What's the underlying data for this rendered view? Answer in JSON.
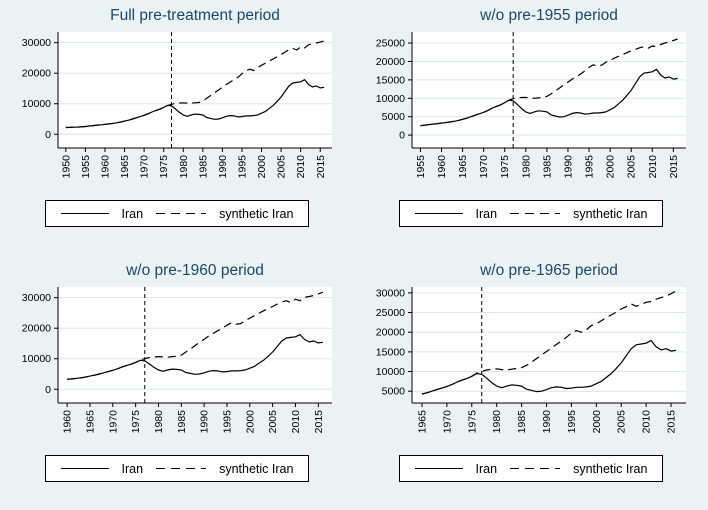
{
  "page": {
    "background_color": "#eaf2f3",
    "title_color": "#1a476f",
    "grid_color": "#d9e6ef",
    "line_color": "#000000",
    "plot_background": "#ffffff"
  },
  "chart_data": [
    {
      "type": "line",
      "title": "Full pre-treatment period",
      "xlabel": "",
      "ylabel": "",
      "grid": true,
      "legend_position": "bottom",
      "legend": [
        "Iran",
        "synthetic Iran"
      ],
      "x_ticks": [
        1950,
        1955,
        1960,
        1965,
        1970,
        1975,
        1980,
        1985,
        1990,
        1995,
        2000,
        2005,
        2010,
        2015
      ],
      "y_ticks": [
        0,
        10000,
        20000,
        30000
      ],
      "xlim": [
        1948,
        2018
      ],
      "ylim": [
        -4500,
        33500
      ],
      "treatment_line_x": 1977,
      "series": [
        {
          "name": "Iran",
          "style": "solid",
          "start_year": 1950,
          "values": [
            2200,
            2250,
            2300,
            2350,
            2450,
            2550,
            2700,
            2850,
            3000,
            3100,
            3250,
            3400,
            3550,
            3750,
            4000,
            4300,
            4600,
            5000,
            5400,
            5800,
            6200,
            6700,
            7300,
            7800,
            8200,
            8800,
            9500,
            9300,
            8300,
            7200,
            6300,
            5900,
            6300,
            6600,
            6500,
            6300,
            5500,
            5200,
            4900,
            5000,
            5400,
            5900,
            6100,
            6000,
            5700,
            5800,
            6000,
            6000,
            6100,
            6300,
            6900,
            7500,
            8500,
            9500,
            10800,
            12200,
            14000,
            15800,
            16800,
            17000,
            17200,
            17900,
            16300,
            15500,
            15800,
            15200,
            15400
          ]
        },
        {
          "name": "synthetic Iran",
          "style": "dashed",
          "start_year": 1950,
          "values": [
            2200,
            2250,
            2300,
            2350,
            2450,
            2550,
            2700,
            2850,
            3000,
            3100,
            3250,
            3400,
            3550,
            3750,
            4000,
            4300,
            4600,
            5000,
            5400,
            5800,
            6200,
            6700,
            7300,
            7800,
            8200,
            8800,
            9400,
            9800,
            10100,
            10200,
            10300,
            10200,
            10200,
            10300,
            10400,
            10800,
            11800,
            12700,
            13600,
            14500,
            15400,
            16300,
            17100,
            17900,
            18700,
            19800,
            20800,
            21300,
            20900,
            21800,
            22600,
            23300,
            24000,
            24700,
            25400,
            26100,
            26900,
            27700,
            28100,
            27600,
            28700,
            28300,
            29300,
            29600,
            29900,
            30200,
            30600
          ]
        }
      ]
    },
    {
      "type": "line",
      "title": "w/o pre-1955 period",
      "xlabel": "",
      "ylabel": "",
      "grid": true,
      "legend_position": "bottom",
      "legend": [
        "Iran",
        "synthetic Iran"
      ],
      "x_ticks": [
        1955,
        1960,
        1965,
        1970,
        1975,
        1980,
        1985,
        1990,
        1995,
        2000,
        2005,
        2010,
        2015
      ],
      "y_ticks": [
        0,
        5000,
        10000,
        15000,
        20000,
        25000
      ],
      "xlim": [
        1953,
        2018
      ],
      "ylim": [
        -3500,
        28000
      ],
      "treatment_line_x": 1977,
      "series": [
        {
          "name": "Iran",
          "style": "solid",
          "start_year": 1955,
          "values": [
            2550,
            2700,
            2850,
            3000,
            3100,
            3250,
            3400,
            3550,
            3750,
            4000,
            4300,
            4600,
            5000,
            5400,
            5800,
            6200,
            6700,
            7300,
            7800,
            8200,
            8800,
            9500,
            9300,
            8300,
            7200,
            6300,
            5900,
            6300,
            6600,
            6500,
            6300,
            5500,
            5200,
            4900,
            5000,
            5400,
            5900,
            6100,
            6000,
            5700,
            5800,
            6000,
            6000,
            6100,
            6300,
            6900,
            7500,
            8500,
            9500,
            10800,
            12200,
            14000,
            15800,
            16800,
            17000,
            17200,
            17900,
            16300,
            15500,
            15800,
            15200,
            15400
          ]
        },
        {
          "name": "synthetic Iran",
          "style": "dashed",
          "start_year": 1955,
          "values": [
            2550,
            2700,
            2850,
            3000,
            3100,
            3250,
            3400,
            3550,
            3750,
            4000,
            4300,
            4600,
            5000,
            5400,
            5800,
            6200,
            6700,
            7300,
            7800,
            8200,
            8800,
            9500,
            9900,
            10100,
            10200,
            10200,
            10100,
            10000,
            10100,
            10200,
            10500,
            11200,
            12000,
            12800,
            13600,
            14400,
            15200,
            15900,
            16600,
            17400,
            18400,
            19100,
            18700,
            19000,
            19800,
            20300,
            20900,
            21400,
            21900,
            22400,
            22900,
            23300,
            23700,
            24000,
            23600,
            24200,
            24000,
            24600,
            25000,
            25300,
            25700,
            26100
          ]
        }
      ]
    },
    {
      "type": "line",
      "title": "w/o pre-1960 period",
      "xlabel": "",
      "ylabel": "",
      "grid": true,
      "legend_position": "bottom",
      "legend": [
        "Iran",
        "synthetic Iran"
      ],
      "x_ticks": [
        1960,
        1965,
        1970,
        1975,
        1980,
        1985,
        1990,
        1995,
        2000,
        2005,
        2010,
        2015
      ],
      "y_ticks": [
        0,
        10000,
        20000,
        30000
      ],
      "xlim": [
        1958,
        2018
      ],
      "ylim": [
        -4500,
        33500
      ],
      "treatment_line_x": 1977,
      "series": [
        {
          "name": "Iran",
          "style": "solid",
          "start_year": 1960,
          "values": [
            3250,
            3400,
            3550,
            3750,
            4000,
            4300,
            4600,
            5000,
            5400,
            5800,
            6200,
            6700,
            7300,
            7800,
            8200,
            8800,
            9500,
            9300,
            8300,
            7200,
            6300,
            5900,
            6300,
            6600,
            6500,
            6300,
            5500,
            5200,
            4900,
            5000,
            5400,
            5900,
            6100,
            6000,
            5700,
            5800,
            6000,
            6000,
            6100,
            6300,
            6900,
            7500,
            8500,
            9500,
            10800,
            12200,
            14000,
            15800,
            16800,
            17000,
            17200,
            17900,
            16300,
            15500,
            15800,
            15200,
            15400
          ]
        },
        {
          "name": "synthetic Iran",
          "style": "dashed",
          "start_year": 1960,
          "values": [
            3250,
            3400,
            3550,
            3750,
            4000,
            4300,
            4600,
            5000,
            5400,
            5800,
            6200,
            6700,
            7300,
            7800,
            8200,
            8800,
            9600,
            10000,
            10400,
            10600,
            10700,
            10600,
            10500,
            10700,
            10800,
            11200,
            12200,
            13200,
            14300,
            15400,
            16400,
            17400,
            18300,
            19200,
            20000,
            21000,
            21800,
            21300,
            21500,
            22500,
            23300,
            24100,
            24900,
            25700,
            26400,
            27100,
            27900,
            28600,
            29000,
            28400,
            29500,
            29000,
            30100,
            30400,
            30700,
            31200,
            31800
          ]
        }
      ]
    },
    {
      "type": "line",
      "title": "w/o pre-1965 period",
      "xlabel": "",
      "ylabel": "",
      "grid": true,
      "legend_position": "bottom",
      "legend": [
        "Iran",
        "synthetic Iran"
      ],
      "x_ticks": [
        1965,
        1970,
        1975,
        1980,
        1985,
        1990,
        1995,
        2000,
        2005,
        2010,
        2015
      ],
      "y_ticks": [
        5000,
        10000,
        15000,
        20000,
        25000,
        30000
      ],
      "xlim": [
        1963,
        2018
      ],
      "ylim": [
        2000,
        31500
      ],
      "treatment_line_x": 1977,
      "series": [
        {
          "name": "Iran",
          "style": "solid",
          "start_year": 1965,
          "values": [
            4300,
            4600,
            5000,
            5400,
            5800,
            6200,
            6700,
            7300,
            7800,
            8200,
            8800,
            9500,
            9300,
            8300,
            7200,
            6300,
            5900,
            6300,
            6600,
            6500,
            6300,
            5500,
            5200,
            4900,
            5000,
            5400,
            5900,
            6100,
            6000,
            5700,
            5800,
            6000,
            6000,
            6100,
            6300,
            6900,
            7500,
            8500,
            9500,
            10800,
            12200,
            14000,
            15800,
            16800,
            17000,
            17200,
            17900,
            16300,
            15500,
            15800,
            15200,
            15400
          ]
        },
        {
          "name": "synthetic Iran",
          "style": "dashed",
          "start_year": 1965,
          "values": [
            4300,
            4600,
            5000,
            5400,
            5800,
            6200,
            6700,
            7300,
            7800,
            8200,
            8800,
            9600,
            10000,
            10400,
            10600,
            10700,
            10500,
            10400,
            10600,
            10800,
            11000,
            11600,
            12400,
            13300,
            14200,
            15100,
            16000,
            16900,
            17800,
            18700,
            19800,
            20400,
            20000,
            20600,
            21700,
            22100,
            22900,
            23700,
            24400,
            25100,
            25900,
            26500,
            27200,
            26600,
            27100,
            27600,
            27800,
            28400,
            28800,
            29200,
            29800,
            30500
          ]
        }
      ]
    }
  ]
}
